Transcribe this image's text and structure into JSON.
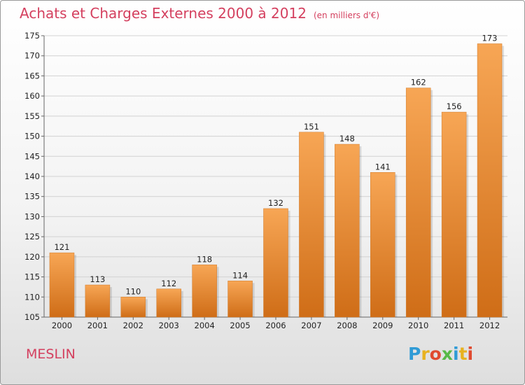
{
  "header": {
    "title": "Achats et Charges Externes 2000 à 2012",
    "unit": "(en milliers d'€)"
  },
  "footer": {
    "place": "MESLIN",
    "brand_letters": [
      "P",
      "r",
      "o",
      "x",
      "i",
      "t",
      "i"
    ]
  },
  "colors": {
    "title": "#d4405f",
    "bar_top": "#f7a655",
    "bar_bottom": "#cf6d17",
    "brand": [
      "#2f9bd6",
      "#e8b220",
      "#e04a2f",
      "#58b947",
      "#2f9bd6",
      "#e8b220",
      "#e04a2f"
    ]
  },
  "chart_data": {
    "type": "bar",
    "title": "Achats et Charges Externes 2000 à 2012",
    "subtitle": "(en milliers d'€)",
    "categories": [
      "2000",
      "2001",
      "2002",
      "2003",
      "2004",
      "2005",
      "2006",
      "2007",
      "2008",
      "2009",
      "2010",
      "2011",
      "2012"
    ],
    "values": [
      121,
      113,
      110,
      112,
      118,
      114,
      132,
      151,
      148,
      141,
      162,
      156,
      173
    ],
    "ylim": [
      105,
      175
    ],
    "yticks": [
      105,
      110,
      115,
      120,
      125,
      130,
      135,
      140,
      145,
      150,
      155,
      160,
      165,
      170,
      175
    ],
    "grid": true,
    "xlabel": "",
    "ylabel": ""
  }
}
